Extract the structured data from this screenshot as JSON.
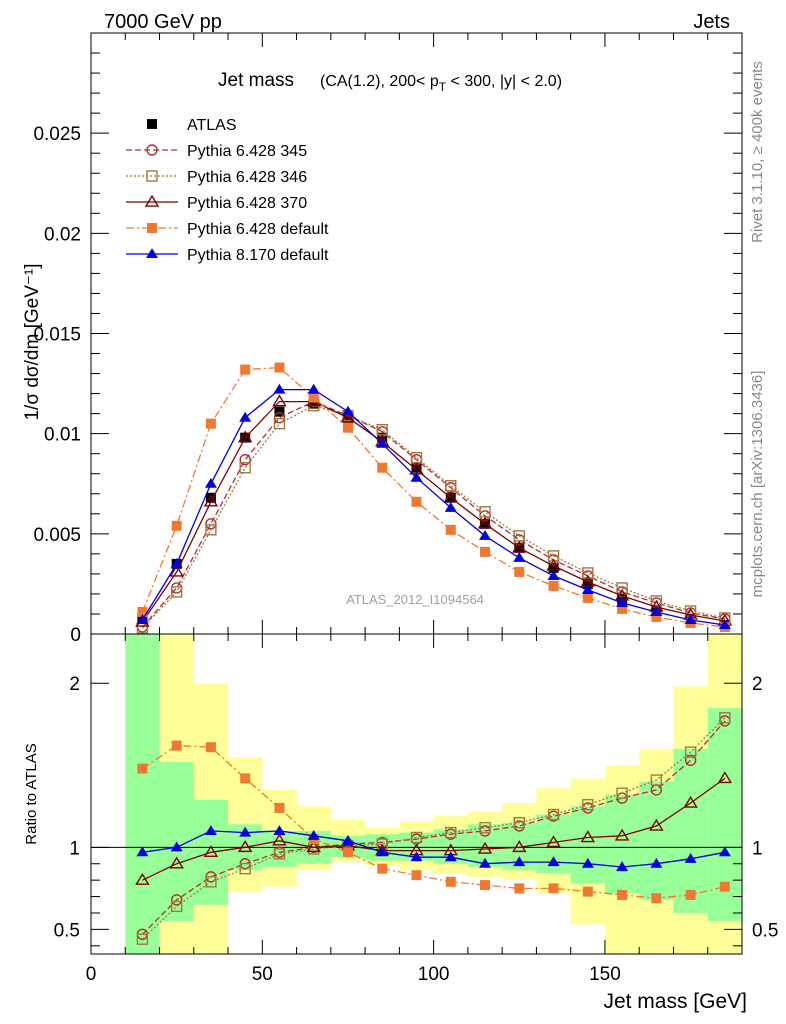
{
  "header": {
    "left": "7000 GeV pp",
    "right": "Jets"
  },
  "side": {
    "rivet": "Rivet 3.1.10, ≥ 400k events",
    "mcplots": "mcplots.cern.ch [arXiv:1306.3436]"
  },
  "chart_data": [
    {
      "type": "line",
      "title": "Jet mass",
      "subtitle": "(CA(1.2), 200< p_T < 300, |y| < 2.0)",
      "xlabel": "",
      "ylabel": "1/σ dσ/dm [GeV⁻¹]",
      "watermark": "ATLAS_2012_I1094564",
      "xlim": [
        0,
        190
      ],
      "ylim": [
        0,
        0.03
      ],
      "ytick_labels": [
        "0",
        "0.005",
        "0.01",
        "0.015",
        "0.02",
        "0.025"
      ],
      "legend_position": "top-left",
      "x": [
        15,
        25,
        35,
        45,
        55,
        65,
        75,
        85,
        95,
        105,
        115,
        125,
        135,
        145,
        155,
        165,
        175,
        185
      ],
      "series": [
        {
          "name": "ATLAS",
          "color": "#000000",
          "marker": "filled-square",
          "line": "none",
          "values": [
            0.00075,
            0.0035,
            0.0068,
            0.0098,
            0.0111,
            0.0115,
            0.0107,
            0.0098,
            0.0083,
            0.0068,
            0.0055,
            0.0043,
            0.0033,
            0.0025,
            0.00175,
            0.0012,
            0.00075,
            0.00045
          ]
        },
        {
          "name": "Pythia 6.428 345",
          "color": "#b03030",
          "marker": "open-circle",
          "line": "dashed",
          "values": [
            0.00035,
            0.0023,
            0.0055,
            0.0087,
            0.0108,
            0.0116,
            0.0109,
            0.0101,
            0.0087,
            0.0073,
            0.0059,
            0.0047,
            0.0037,
            0.0029,
            0.0021,
            0.00155,
            0.00105,
            0.00075
          ]
        },
        {
          "name": "Pythia 6.428 346",
          "color": "#a07840",
          "marker": "open-square",
          "line": "dotted",
          "values": [
            0.0003,
            0.0021,
            0.0052,
            0.0083,
            0.0105,
            0.0114,
            0.0109,
            0.0102,
            0.0088,
            0.0074,
            0.0061,
            0.0049,
            0.0039,
            0.00305,
            0.0023,
            0.00165,
            0.00115,
            0.0008
          ]
        },
        {
          "name": "Pythia 6.428 370",
          "color": "#800000",
          "marker": "open-triangle",
          "line": "solid",
          "values": [
            0.0006,
            0.0031,
            0.0066,
            0.0098,
            0.0116,
            0.0116,
            0.0108,
            0.0096,
            0.0082,
            0.0068,
            0.0055,
            0.0043,
            0.0034,
            0.0026,
            0.0019,
            0.00135,
            0.00095,
            0.00065
          ]
        },
        {
          "name": "Pythia 6.428 default",
          "color": "#f07830",
          "marker": "filled-square",
          "line": "dashdot",
          "values": [
            0.0011,
            0.0054,
            0.0105,
            0.0132,
            0.0133,
            0.0118,
            0.0103,
            0.0083,
            0.0066,
            0.0052,
            0.0041,
            0.0031,
            0.0024,
            0.0018,
            0.00125,
            0.00085,
            0.00055,
            0.00035
          ]
        },
        {
          "name": "Pythia 8.170 default",
          "color": "#0000e0",
          "marker": "filled-triangle",
          "line": "solid",
          "values": [
            0.0007,
            0.0035,
            0.0075,
            0.0108,
            0.0122,
            0.0122,
            0.0111,
            0.0095,
            0.0078,
            0.0063,
            0.0049,
            0.0038,
            0.0029,
            0.0022,
            0.00155,
            0.0011,
            0.0007,
            0.00045
          ]
        }
      ]
    },
    {
      "type": "line",
      "title": "",
      "xlabel": "Jet mass [GeV]",
      "ylabel": "Ratio to ATLAS",
      "xlim": [
        0,
        190
      ],
      "ylim": [
        0.35,
        2.3
      ],
      "xtick_labels": [
        "0",
        "50",
        "100",
        "150"
      ],
      "ytick_labels": [
        "0.5",
        "1",
        "2"
      ],
      "reference_line": 1,
      "x": [
        15,
        25,
        35,
        45,
        55,
        65,
        75,
        85,
        95,
        105,
        115,
        125,
        135,
        145,
        155,
        165,
        175,
        185
      ],
      "bins": [
        [
          10,
          20
        ],
        [
          20,
          30
        ],
        [
          30,
          40
        ],
        [
          40,
          50
        ],
        [
          50,
          60
        ],
        [
          60,
          70
        ],
        [
          70,
          80
        ],
        [
          80,
          90
        ],
        [
          90,
          100
        ],
        [
          100,
          110
        ],
        [
          110,
          120
        ],
        [
          120,
          130
        ],
        [
          130,
          140
        ],
        [
          140,
          150
        ],
        [
          150,
          160
        ],
        [
          160,
          170
        ],
        [
          170,
          180
        ],
        [
          180,
          190
        ]
      ],
      "band_outer": {
        "color": "#ffff99",
        "low": [
          0.3,
          0.3,
          0.3,
          0.73,
          0.76,
          0.86,
          0.91,
          0.89,
          0.86,
          0.84,
          0.82,
          0.8,
          0.72,
          0.53,
          0.3,
          0.3,
          0.3,
          0.3
        ],
        "high": [
          2.4,
          2.4,
          2.0,
          1.55,
          1.35,
          1.25,
          1.17,
          1.12,
          1.16,
          1.19,
          1.22,
          1.27,
          1.36,
          1.42,
          1.5,
          1.6,
          1.98,
          2.4
        ]
      },
      "band_inner": {
        "color": "#99ff99",
        "low": [
          0.3,
          0.55,
          0.65,
          0.86,
          0.88,
          0.9,
          0.94,
          0.92,
          0.92,
          0.9,
          0.88,
          0.86,
          0.84,
          0.78,
          0.72,
          0.68,
          0.6,
          0.55
        ],
        "high": [
          2.4,
          1.52,
          1.29,
          1.14,
          1.1,
          1.1,
          1.07,
          1.08,
          1.09,
          1.11,
          1.14,
          1.15,
          1.2,
          1.25,
          1.32,
          1.4,
          1.6,
          1.85
        ]
      },
      "series": [
        {
          "name": "Pythia 6.428 345",
          "color": "#b03030",
          "marker": "open-circle",
          "line": "dashed",
          "values": [
            0.47,
            0.68,
            0.82,
            0.9,
            0.97,
            1.0,
            1.02,
            1.03,
            1.05,
            1.08,
            1.1,
            1.13,
            1.19,
            1.24,
            1.3,
            1.35,
            1.53,
            1.77
          ]
        },
        {
          "name": "Pythia 6.428 346",
          "color": "#a07840",
          "marker": "open-square",
          "line": "dotted",
          "values": [
            0.44,
            0.64,
            0.79,
            0.87,
            0.96,
            0.99,
            1.01,
            1.02,
            1.06,
            1.09,
            1.12,
            1.15,
            1.2,
            1.26,
            1.33,
            1.41,
            1.58,
            1.79
          ]
        },
        {
          "name": "Pythia 6.428 370",
          "color": "#800000",
          "marker": "open-triangle",
          "line": "solid",
          "values": [
            0.8,
            0.9,
            0.97,
            1.0,
            1.04,
            1.0,
            1.01,
            0.98,
            0.98,
            0.98,
            0.99,
            1.0,
            1.03,
            1.06,
            1.07,
            1.13,
            1.27,
            1.42
          ]
        },
        {
          "name": "Pythia 6.428 default",
          "color": "#f07830",
          "marker": "filled-square",
          "line": "dashdot",
          "values": [
            1.48,
            1.62,
            1.61,
            1.42,
            1.24,
            1.05,
            0.97,
            0.87,
            0.83,
            0.79,
            0.77,
            0.75,
            0.75,
            0.73,
            0.71,
            0.69,
            0.71,
            0.76
          ]
        },
        {
          "name": "Pythia 8.170 default",
          "color": "#0000e0",
          "marker": "filled-triangle",
          "line": "solid",
          "values": [
            0.97,
            1.0,
            1.1,
            1.09,
            1.1,
            1.07,
            1.04,
            0.97,
            0.94,
            0.94,
            0.9,
            0.91,
            0.91,
            0.9,
            0.88,
            0.9,
            0.93,
            0.97
          ]
        }
      ]
    }
  ]
}
